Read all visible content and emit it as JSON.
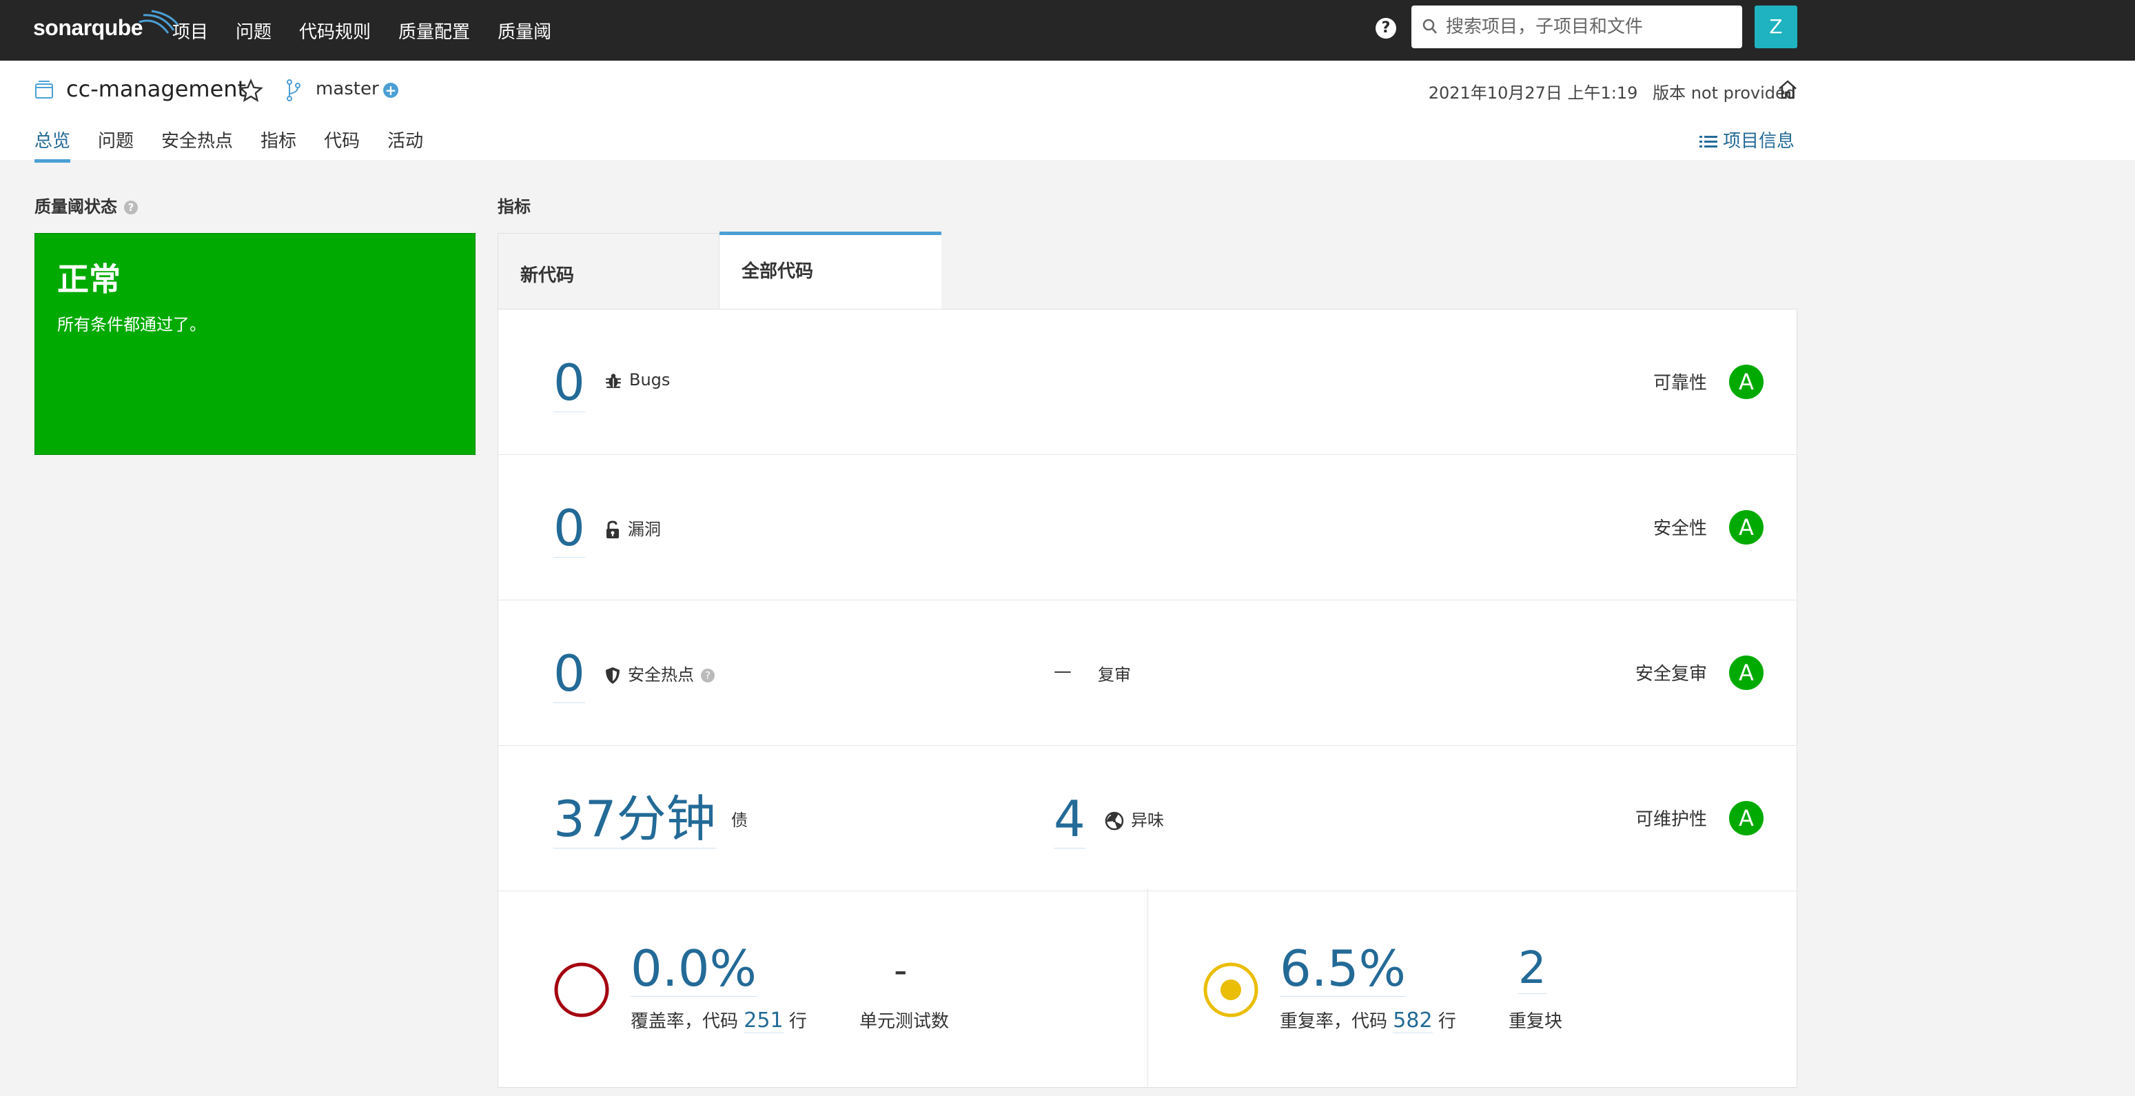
{
  "topbar": {
    "logo_text": "sonarqube",
    "nav": [
      "项目",
      "问题",
      "代码规则",
      "质量配置",
      "质量阈"
    ],
    "help_label": "?",
    "search_placeholder": "搜索项目，子项目和文件",
    "avatar_letter": "Z"
  },
  "header": {
    "project_name": "cc-management",
    "branch": "master",
    "analysis_date": "2021年10月27日 上午1:19",
    "version": "版本 not provided",
    "tabs": [
      "总览",
      "问题",
      "安全热点",
      "指标",
      "代码",
      "活动"
    ],
    "active_tab": "总览",
    "project_info": "项目信息"
  },
  "quality_gate": {
    "title": "质量阈状态",
    "help": "?",
    "status": "正常",
    "message": "所有条件都通过了。",
    "color": "#00aa00"
  },
  "measures": {
    "title": "指标",
    "tabs": [
      "新代码",
      "全部代码"
    ],
    "active_tab": "全部代码",
    "bugs": {
      "value": "0",
      "label": "Bugs",
      "rating_label": "可靠性",
      "rating": "A"
    },
    "vulnerabilities": {
      "value": "0",
      "label": "漏洞",
      "rating_label": "安全性",
      "rating": "A"
    },
    "hotspots": {
      "value": "0",
      "label": "安全热点",
      "review_value": "—",
      "review_label": "复审",
      "rating_label": "安全复审",
      "rating": "A"
    },
    "maintainability": {
      "debt_value": "37分钟",
      "debt_label": "债",
      "smells_value": "4",
      "smells_label": "异味",
      "rating_label": "可维护性",
      "rating": "A"
    },
    "coverage": {
      "value": "0.0%",
      "label_prefix": "覆盖率，代码",
      "lines": "251",
      "label_suffix": "行",
      "tests_value": "-",
      "tests_label": "单元测试数"
    },
    "duplications": {
      "value": "6.5%",
      "label_prefix": "重复率，代码",
      "lines": "582",
      "label_suffix": "行",
      "blocks_value": "2",
      "blocks_label": "重复块"
    },
    "rating_color": "#00aa00",
    "link_color": "#236a97"
  }
}
